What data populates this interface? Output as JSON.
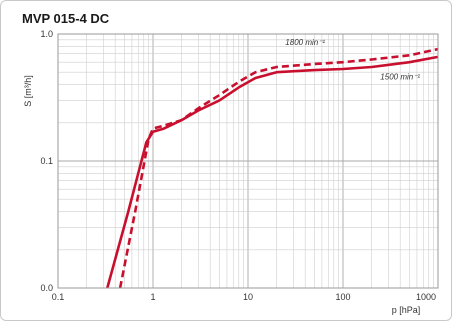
{
  "chart_data": {
    "type": "line",
    "title": "MVP 015-4 DC",
    "xlabel": "p [hPa]",
    "ylabel": "S [m³/h]",
    "x_scale": "log",
    "y_scale": "log",
    "xlim": [
      0.1,
      1000
    ],
    "ylim": [
      0.01,
      1.0
    ],
    "grid": true,
    "x_ticks": [
      0.1,
      1,
      10,
      100,
      1000
    ],
    "x_tick_labels": [
      "0.1",
      "1",
      "10",
      "100",
      "1000"
    ],
    "y_ticks": [
      0.01,
      0.1,
      1.0
    ],
    "y_tick_labels": [
      "0.0",
      "0.1",
      "1.0"
    ],
    "series": [
      {
        "name": "1500 min⁻¹",
        "style": "solid",
        "color": "#c8102e",
        "x": [
          0.33,
          0.55,
          0.85,
          1.0,
          1.3,
          2.0,
          3.0,
          5.0,
          8.0,
          12.0,
          20.0,
          50.0,
          100.0,
          200.0,
          500.0,
          1000.0
        ],
        "y": [
          0.01,
          0.04,
          0.14,
          0.17,
          0.18,
          0.21,
          0.25,
          0.3,
          0.38,
          0.45,
          0.5,
          0.52,
          0.53,
          0.55,
          0.6,
          0.66
        ]
      },
      {
        "name": "1800 min⁻¹",
        "style": "dashed",
        "color": "#c8102e",
        "x": [
          0.45,
          0.65,
          0.9,
          1.0,
          1.3,
          2.0,
          3.0,
          5.0,
          8.0,
          12.0,
          20.0,
          50.0,
          100.0,
          200.0,
          500.0,
          1000.0
        ],
        "y": [
          0.01,
          0.04,
          0.15,
          0.18,
          0.19,
          0.21,
          0.26,
          0.33,
          0.42,
          0.5,
          0.55,
          0.58,
          0.6,
          0.63,
          0.68,
          0.76
        ]
      }
    ],
    "annotations": [
      {
        "text": "1800 min⁻¹",
        "x": 40,
        "y": 0.82
      },
      {
        "text": "1500 min⁻¹",
        "x": 400,
        "y": 0.44
      }
    ]
  }
}
